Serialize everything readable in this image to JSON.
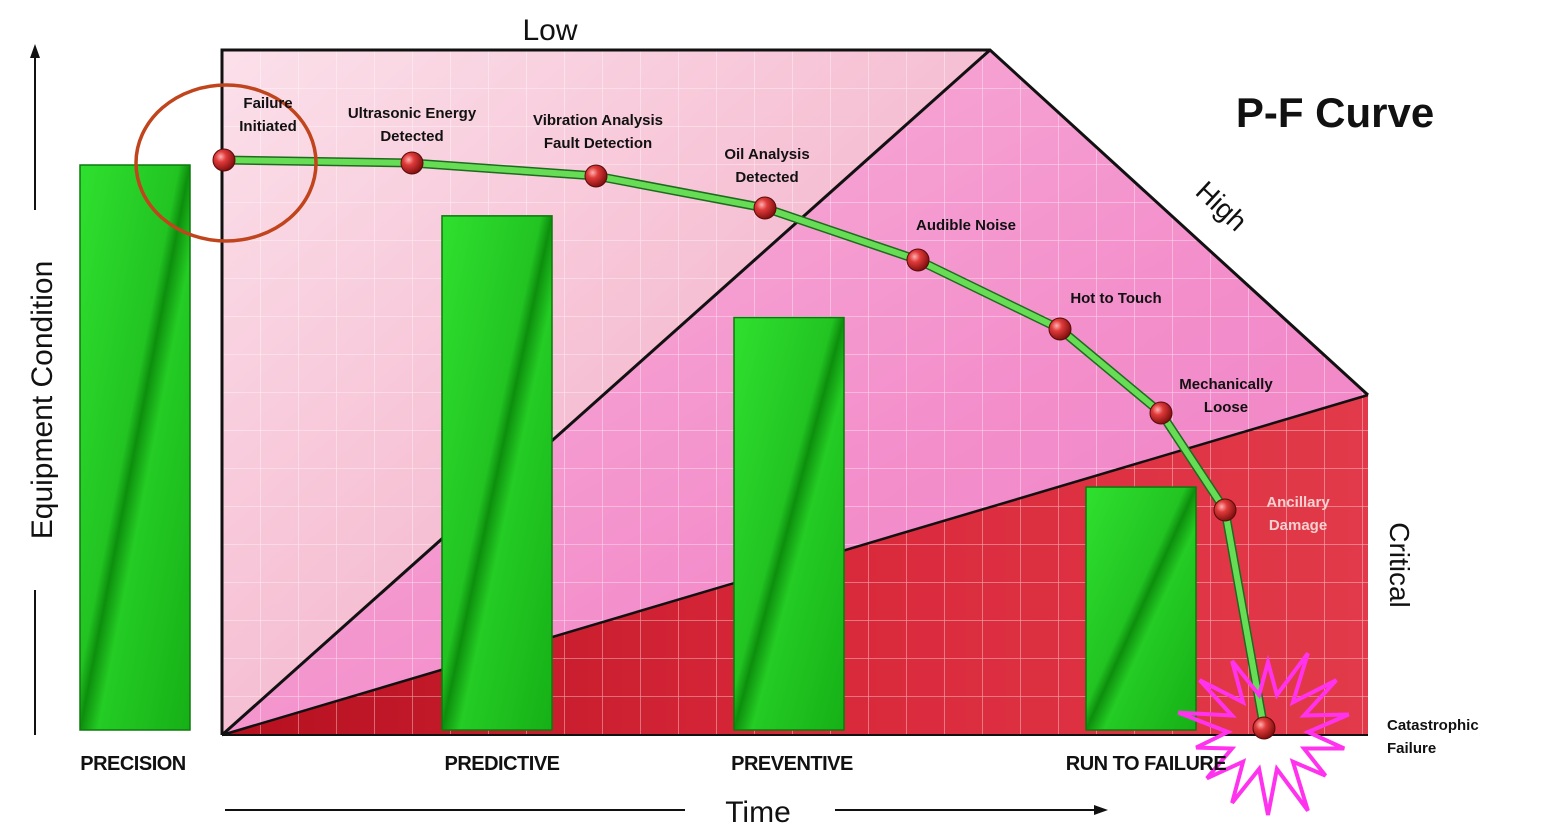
{
  "title": "P-F Curve",
  "y_axis_label": "Equipment Condition",
  "x_axis_label": "Time",
  "zone_labels": {
    "low": "Low",
    "high": "High",
    "critical": "Critical"
  },
  "categories": [
    {
      "id": "precision",
      "label": "PRECISION",
      "relative_height": 1.0
    },
    {
      "id": "predictive",
      "label": "PREDICTIVE",
      "relative_height": 0.91
    },
    {
      "id": "preventive",
      "label": "PREVENTIVE",
      "relative_height": 0.73
    },
    {
      "id": "run-to-failure",
      "label": "RUN TO FAILURE",
      "relative_height": 0.43
    }
  ],
  "curve_points": [
    {
      "id": "failure-initiated",
      "lines": [
        "Failure",
        "Initiated"
      ]
    },
    {
      "id": "ultrasonic",
      "lines": [
        "Ultrasonic Energy",
        "Detected"
      ]
    },
    {
      "id": "vibration",
      "lines": [
        "Vibration Analysis",
        "Fault Detection"
      ]
    },
    {
      "id": "oil-analysis",
      "lines": [
        "Oil Analysis",
        "Detected"
      ]
    },
    {
      "id": "audible-noise",
      "lines": [
        "Audible Noise"
      ]
    },
    {
      "id": "hot-to-touch",
      "lines": [
        "Hot to Touch"
      ]
    },
    {
      "id": "mechanically-loose",
      "lines": [
        "Mechanically",
        "Loose"
      ]
    },
    {
      "id": "ancillary-damage",
      "lines": [
        "Ancillary",
        "Damage"
      ]
    },
    {
      "id": "catastrophic-failure",
      "lines": [
        "Catastrophic",
        "Failure"
      ]
    }
  ],
  "colors": {
    "bar_green": "#22cc22",
    "curve_green": "#66dd55",
    "zone_low": "#f7c4d4",
    "zone_high": "#f59ad0",
    "zone_critical": "#d42434",
    "point_red": "#cc2222",
    "circle_highlight": "#c0441c",
    "burst_magenta": "#ff33ee"
  }
}
